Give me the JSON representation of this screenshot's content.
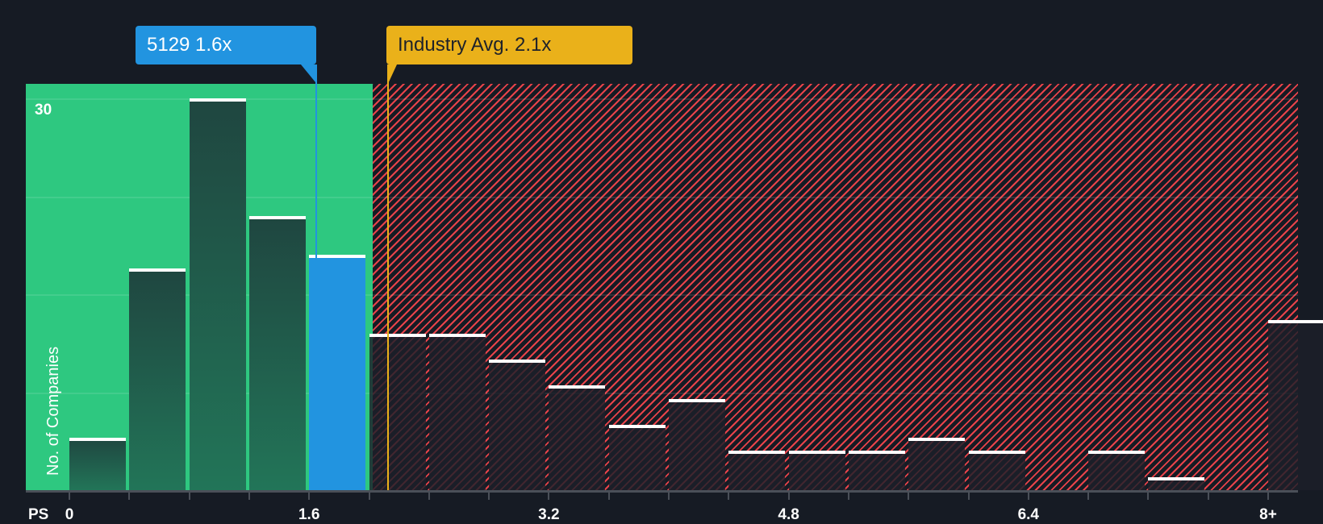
{
  "callouts": {
    "company": {
      "label": "5129 1.6x",
      "ticker": "5129",
      "value": 1.6,
      "color": "#2294e0"
    },
    "industry": {
      "label": "Industry Avg. 2.1x",
      "value": 2.1,
      "color": "#eab11a"
    }
  },
  "axes": {
    "x_prefix": "PS",
    "y_title": "No. of Companies",
    "y_tick_label": "30",
    "x_tick_labels": [
      "0",
      "1.6",
      "3.2",
      "4.8",
      "6.4",
      "8+"
    ]
  },
  "colors": {
    "background": "#161b24",
    "undervalued_zone": "#2ec880",
    "overvalued_hatch": "#e8434a",
    "company_bar": "#2294e0"
  },
  "chart_data": {
    "type": "bar",
    "title": "",
    "xlabel": "PS",
    "ylabel": "No. of Companies",
    "categories": [
      "0-0.4",
      "0.4-0.8",
      "0.8-1.2",
      "1.2-1.6",
      "1.6-2.0",
      "2.0-2.4",
      "2.4-2.8",
      "2.8-3.2",
      "3.2-3.6",
      "3.6-4.0",
      "4.0-4.4",
      "4.4-4.8",
      "4.8-5.2",
      "5.2-5.6",
      "5.6-6.0",
      "6.0-6.4",
      "6.4-6.8",
      "6.8-7.2",
      "7.2-7.6",
      "7.6-8.0",
      "8+"
    ],
    "values": [
      4,
      17,
      30,
      21,
      18,
      12,
      12,
      10,
      8,
      5,
      7,
      3,
      3,
      3,
      4,
      3,
      0,
      3,
      1,
      0,
      13
    ],
    "highlight_index": 4,
    "x_ticks": [
      "0",
      "1.6",
      "3.2",
      "4.8",
      "6.4",
      "8+"
    ],
    "y_ticks": [
      30
    ],
    "ylim": [
      0,
      31
    ],
    "grid": true,
    "annotations": [
      {
        "label": "5129 1.6x",
        "x": 1.6
      },
      {
        "label": "Industry Avg. 2.1x",
        "x": 2.1
      }
    ],
    "zones": [
      {
        "name": "below industry avg",
        "from": 0,
        "to": 2.0,
        "color": "#2ec880"
      },
      {
        "name": "above industry avg",
        "from": 2.0,
        "to": "8+",
        "color": "#e8434a",
        "pattern": "hatched"
      }
    ],
    "legend": "none"
  }
}
